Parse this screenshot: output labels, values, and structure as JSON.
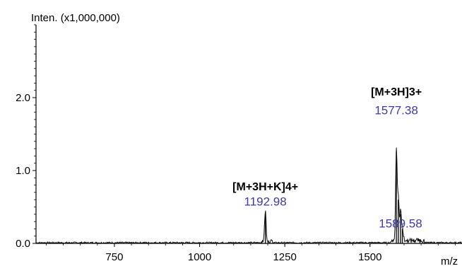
{
  "chart_data": {
    "type": "line",
    "title": "",
    "ylabel": "Inten. (x1,000,000)",
    "xlabel": "m/z",
    "xlim": [
      520,
      1770
    ],
    "ylim": [
      0,
      3.0
    ],
    "x_ticks": [
      750,
      1000,
      1250,
      1500
    ],
    "y_ticks": [
      0.0,
      1.0,
      2.0
    ],
    "x_tick_labels": [
      "750",
      "1000",
      "1250",
      "1500"
    ],
    "y_tick_labels": [
      "0.0",
      "1.0",
      "2.0"
    ],
    "grid": false,
    "series": [
      {
        "color": "#000000",
        "peaks": [
          {
            "x": 1192.98,
            "y": 0.43
          },
          {
            "x": 1577.38,
            "y": 1.27
          },
          {
            "x": 1583.0,
            "y": 0.6
          },
          {
            "x": 1589.58,
            "y": 0.4
          },
          {
            "x": 1595.0,
            "y": 0.2
          }
        ],
        "baseline_noise": 0.02
      }
    ],
    "annotations": [
      {
        "text": "[M+3H+K]4+",
        "x": 1192.98,
        "y_offset": 0.73,
        "kind": "species"
      },
      {
        "text": "1192.98",
        "x": 1192.98,
        "y_offset": 0.52,
        "kind": "peak_label"
      },
      {
        "text": "[M+3H]3+",
        "x": 1577.38,
        "y_offset": 2.03,
        "kind": "species"
      },
      {
        "text": "1577.38",
        "x": 1577.38,
        "y_offset": 1.77,
        "kind": "peak_label"
      },
      {
        "text": "1589.58",
        "x": 1589.58,
        "y_offset": 0.22,
        "kind": "peak_label"
      }
    ],
    "colors": {
      "axis": "#000000",
      "trace": "#111111",
      "peak_label": "#3b3bb0",
      "species": "#000000"
    }
  }
}
